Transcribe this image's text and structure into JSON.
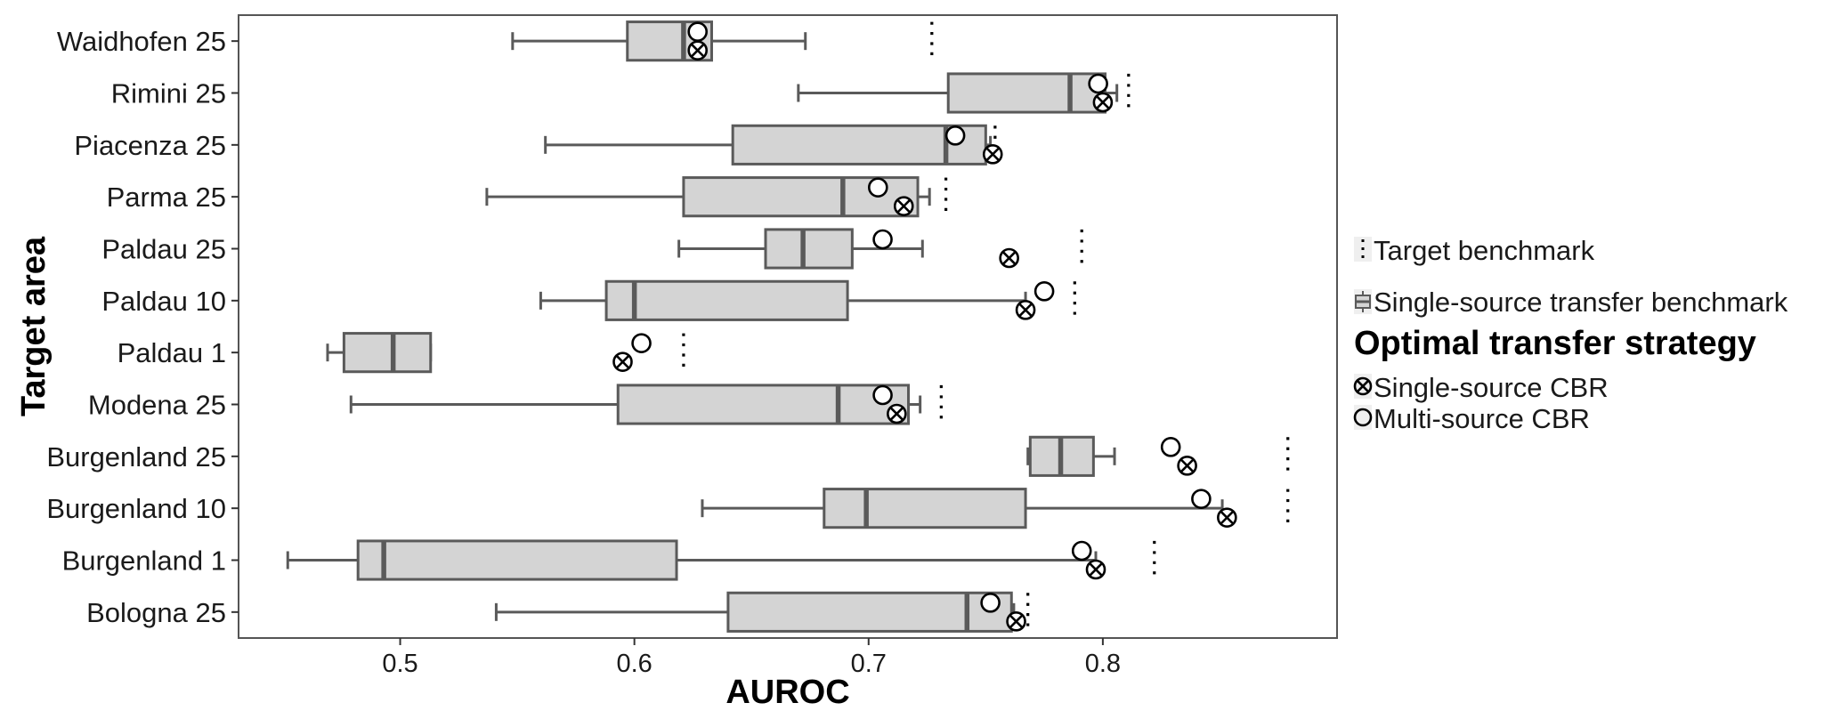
{
  "chart_data": {
    "type": "box",
    "orientation": "horizontal",
    "title": "",
    "xlabel": "AUROC",
    "ylabel": "Target area",
    "xlim": [
      0.431,
      0.9
    ],
    "xticks": [
      0.5,
      0.6,
      0.7,
      0.8
    ],
    "xtick_labels": [
      "0.5",
      "0.6",
      "0.7",
      "0.8"
    ],
    "categories": [
      "Waidhofen 25",
      "Rimini 25",
      "Piacenza 25",
      "Parma 25",
      "Paldau 25",
      "Paldau 10",
      "Paldau 1",
      "Modena 25",
      "Burgenland 25",
      "Burgenland 10",
      "Burgenland 1",
      "Bologna 25"
    ],
    "series": [
      {
        "name": "Single-source transfer benchmark",
        "type": "box",
        "boxes": [
          {
            "min": 0.548,
            "q1": 0.597,
            "median": 0.621,
            "q3": 0.633,
            "max": 0.673
          },
          {
            "min": 0.67,
            "q1": 0.734,
            "median": 0.786,
            "q3": 0.801,
            "max": 0.806
          },
          {
            "min": 0.562,
            "q1": 0.642,
            "median": 0.733,
            "q3": 0.75,
            "max": 0.752
          },
          {
            "min": 0.537,
            "q1": 0.621,
            "median": 0.689,
            "q3": 0.721,
            "max": 0.726
          },
          {
            "min": 0.619,
            "q1": 0.656,
            "median": 0.672,
            "q3": 0.693,
            "max": 0.723
          },
          {
            "min": 0.56,
            "q1": 0.588,
            "median": 0.6,
            "q3": 0.691,
            "max": 0.767
          },
          {
            "min": 0.469,
            "q1": 0.476,
            "median": 0.497,
            "q3": 0.513,
            "max": 0.513
          },
          {
            "min": 0.479,
            "q1": 0.593,
            "median": 0.687,
            "q3": 0.717,
            "max": 0.722
          },
          {
            "min": 0.768,
            "q1": 0.769,
            "median": 0.782,
            "q3": 0.796,
            "max": 0.805
          },
          {
            "min": 0.629,
            "q1": 0.681,
            "median": 0.699,
            "q3": 0.767,
            "max": 0.851
          },
          {
            "min": 0.452,
            "q1": 0.482,
            "median": 0.493,
            "q3": 0.618,
            "max": 0.797
          },
          {
            "min": 0.541,
            "q1": 0.64,
            "median": 0.742,
            "q3": 0.761,
            "max": 0.762
          }
        ]
      },
      {
        "name": "Single-source CBR",
        "type": "point",
        "values": [
          0.627,
          0.8,
          0.753,
          0.715,
          0.76,
          0.767,
          0.595,
          0.712,
          0.836,
          0.853,
          0.797,
          0.763
        ]
      },
      {
        "name": "Multi-source CBR",
        "type": "point",
        "values": [
          0.627,
          0.798,
          0.737,
          0.704,
          0.706,
          0.775,
          0.603,
          0.706,
          0.829,
          0.842,
          0.791,
          0.752
        ]
      },
      {
        "name": "Target benchmark",
        "type": "dotted-segment",
        "values": [
          0.727,
          0.811,
          0.754,
          0.733,
          0.791,
          0.788,
          0.621,
          0.731,
          0.879,
          0.879,
          0.822,
          0.768
        ]
      }
    ],
    "legend": {
      "position": "right",
      "items": [
        {
          "label": "Target benchmark",
          "icon": "dotted-line-icon"
        },
        {
          "label": "Single-source transfer benchmark",
          "icon": "boxplot-icon"
        }
      ],
      "group_title": "Optimal transfer strategy",
      "group_items": [
        {
          "label": "Single-source CBR",
          "icon": "circle-cross-icon"
        },
        {
          "label": "Multi-source CBR",
          "icon": "circle-icon"
        }
      ]
    },
    "grid": false,
    "colors": {
      "box_fill": "#d4d4d4",
      "box_stroke": "#5a5a5a",
      "marker": "#000000",
      "panel_border": "#555555"
    }
  }
}
